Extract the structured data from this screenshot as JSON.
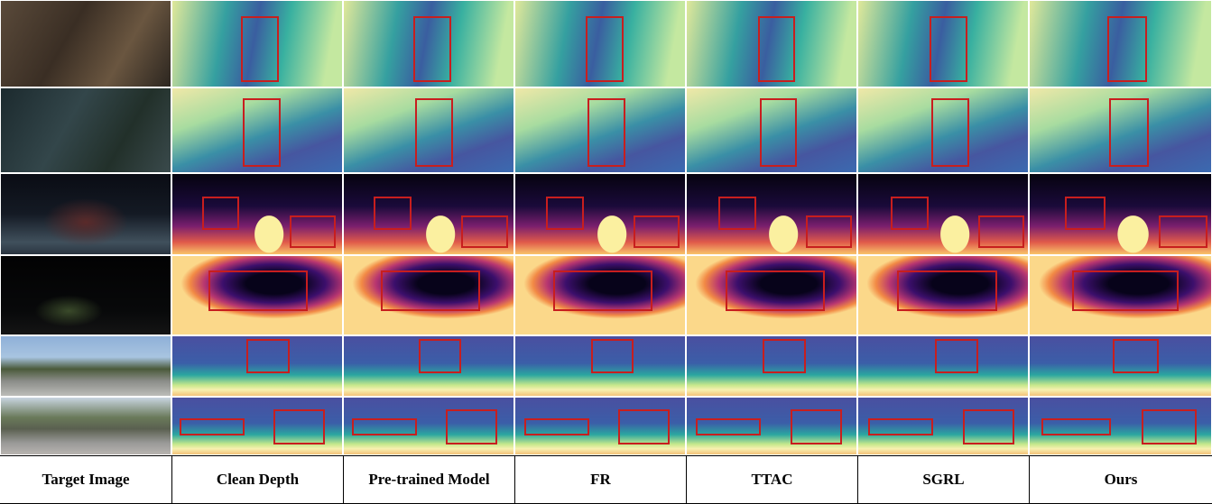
{
  "figure": {
    "columns": [
      "Target Image",
      "Clean Depth",
      "Pre-trained Model",
      "FR",
      "TTAC",
      "SGRL",
      "Ours"
    ]
  }
}
